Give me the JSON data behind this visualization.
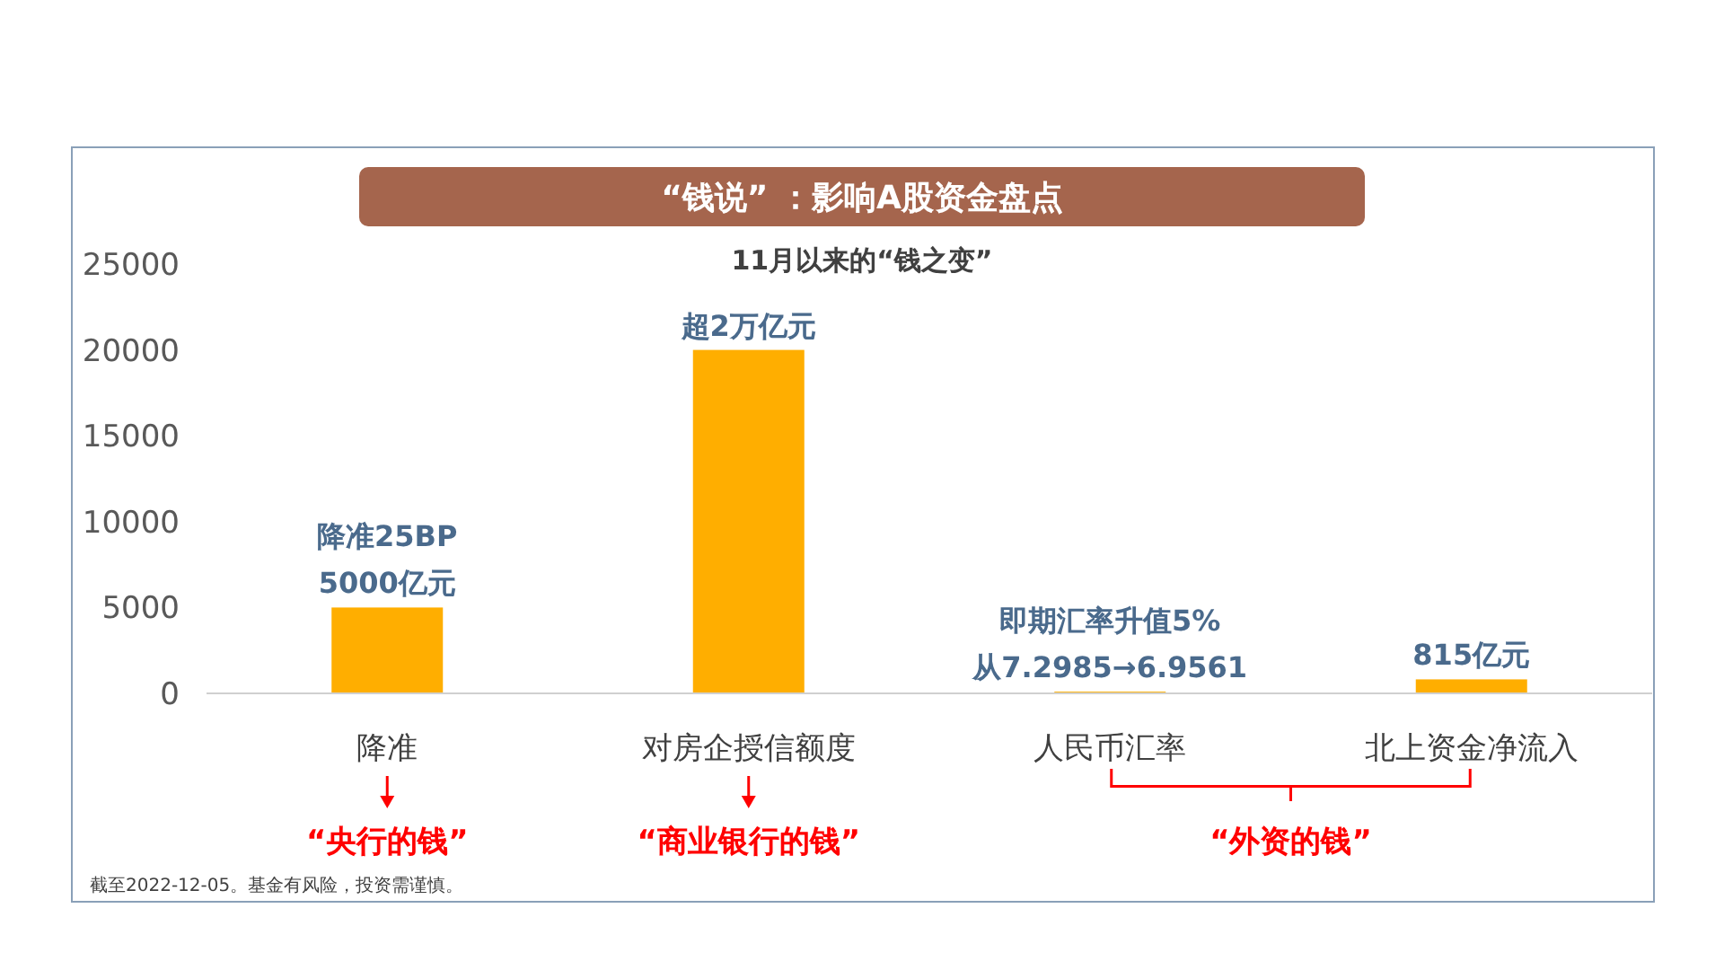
{
  "chart_data": {
    "type": "bar",
    "title": "“钱说” ：影响A股资金盘点",
    "subtitle": "11月以来的“钱之变”",
    "categories": [
      "降准",
      "对房企授信额度",
      "人民币汇率",
      "北上资金净流入"
    ],
    "values": [
      5000,
      20000,
      100,
      815
    ],
    "color": "#ffae00",
    "ylim": [
      0,
      25000
    ],
    "yticks": [
      0,
      5000,
      10000,
      15000,
      20000,
      25000
    ],
    "grid": false,
    "annotations": [
      {
        "text": "降准25BP\n5000亿元",
        "x": "降准",
        "y": 5000
      },
      {
        "text": "超2万亿元",
        "x": "对房企授信额度",
        "y": 20000
      },
      {
        "text": "即期汇率升值5%\n从7.2985→6.9561",
        "x": "人民币汇率",
        "y": 100
      },
      {
        "text": "815亿元",
        "x": "北上资金净流入",
        "y": 815
      },
      "“央行的钱”",
      "“商业银行的钱”",
      "“外资的钱”",
      "截至2022-12-05。基金有风险，投资需谨慎。"
    ]
  }
}
